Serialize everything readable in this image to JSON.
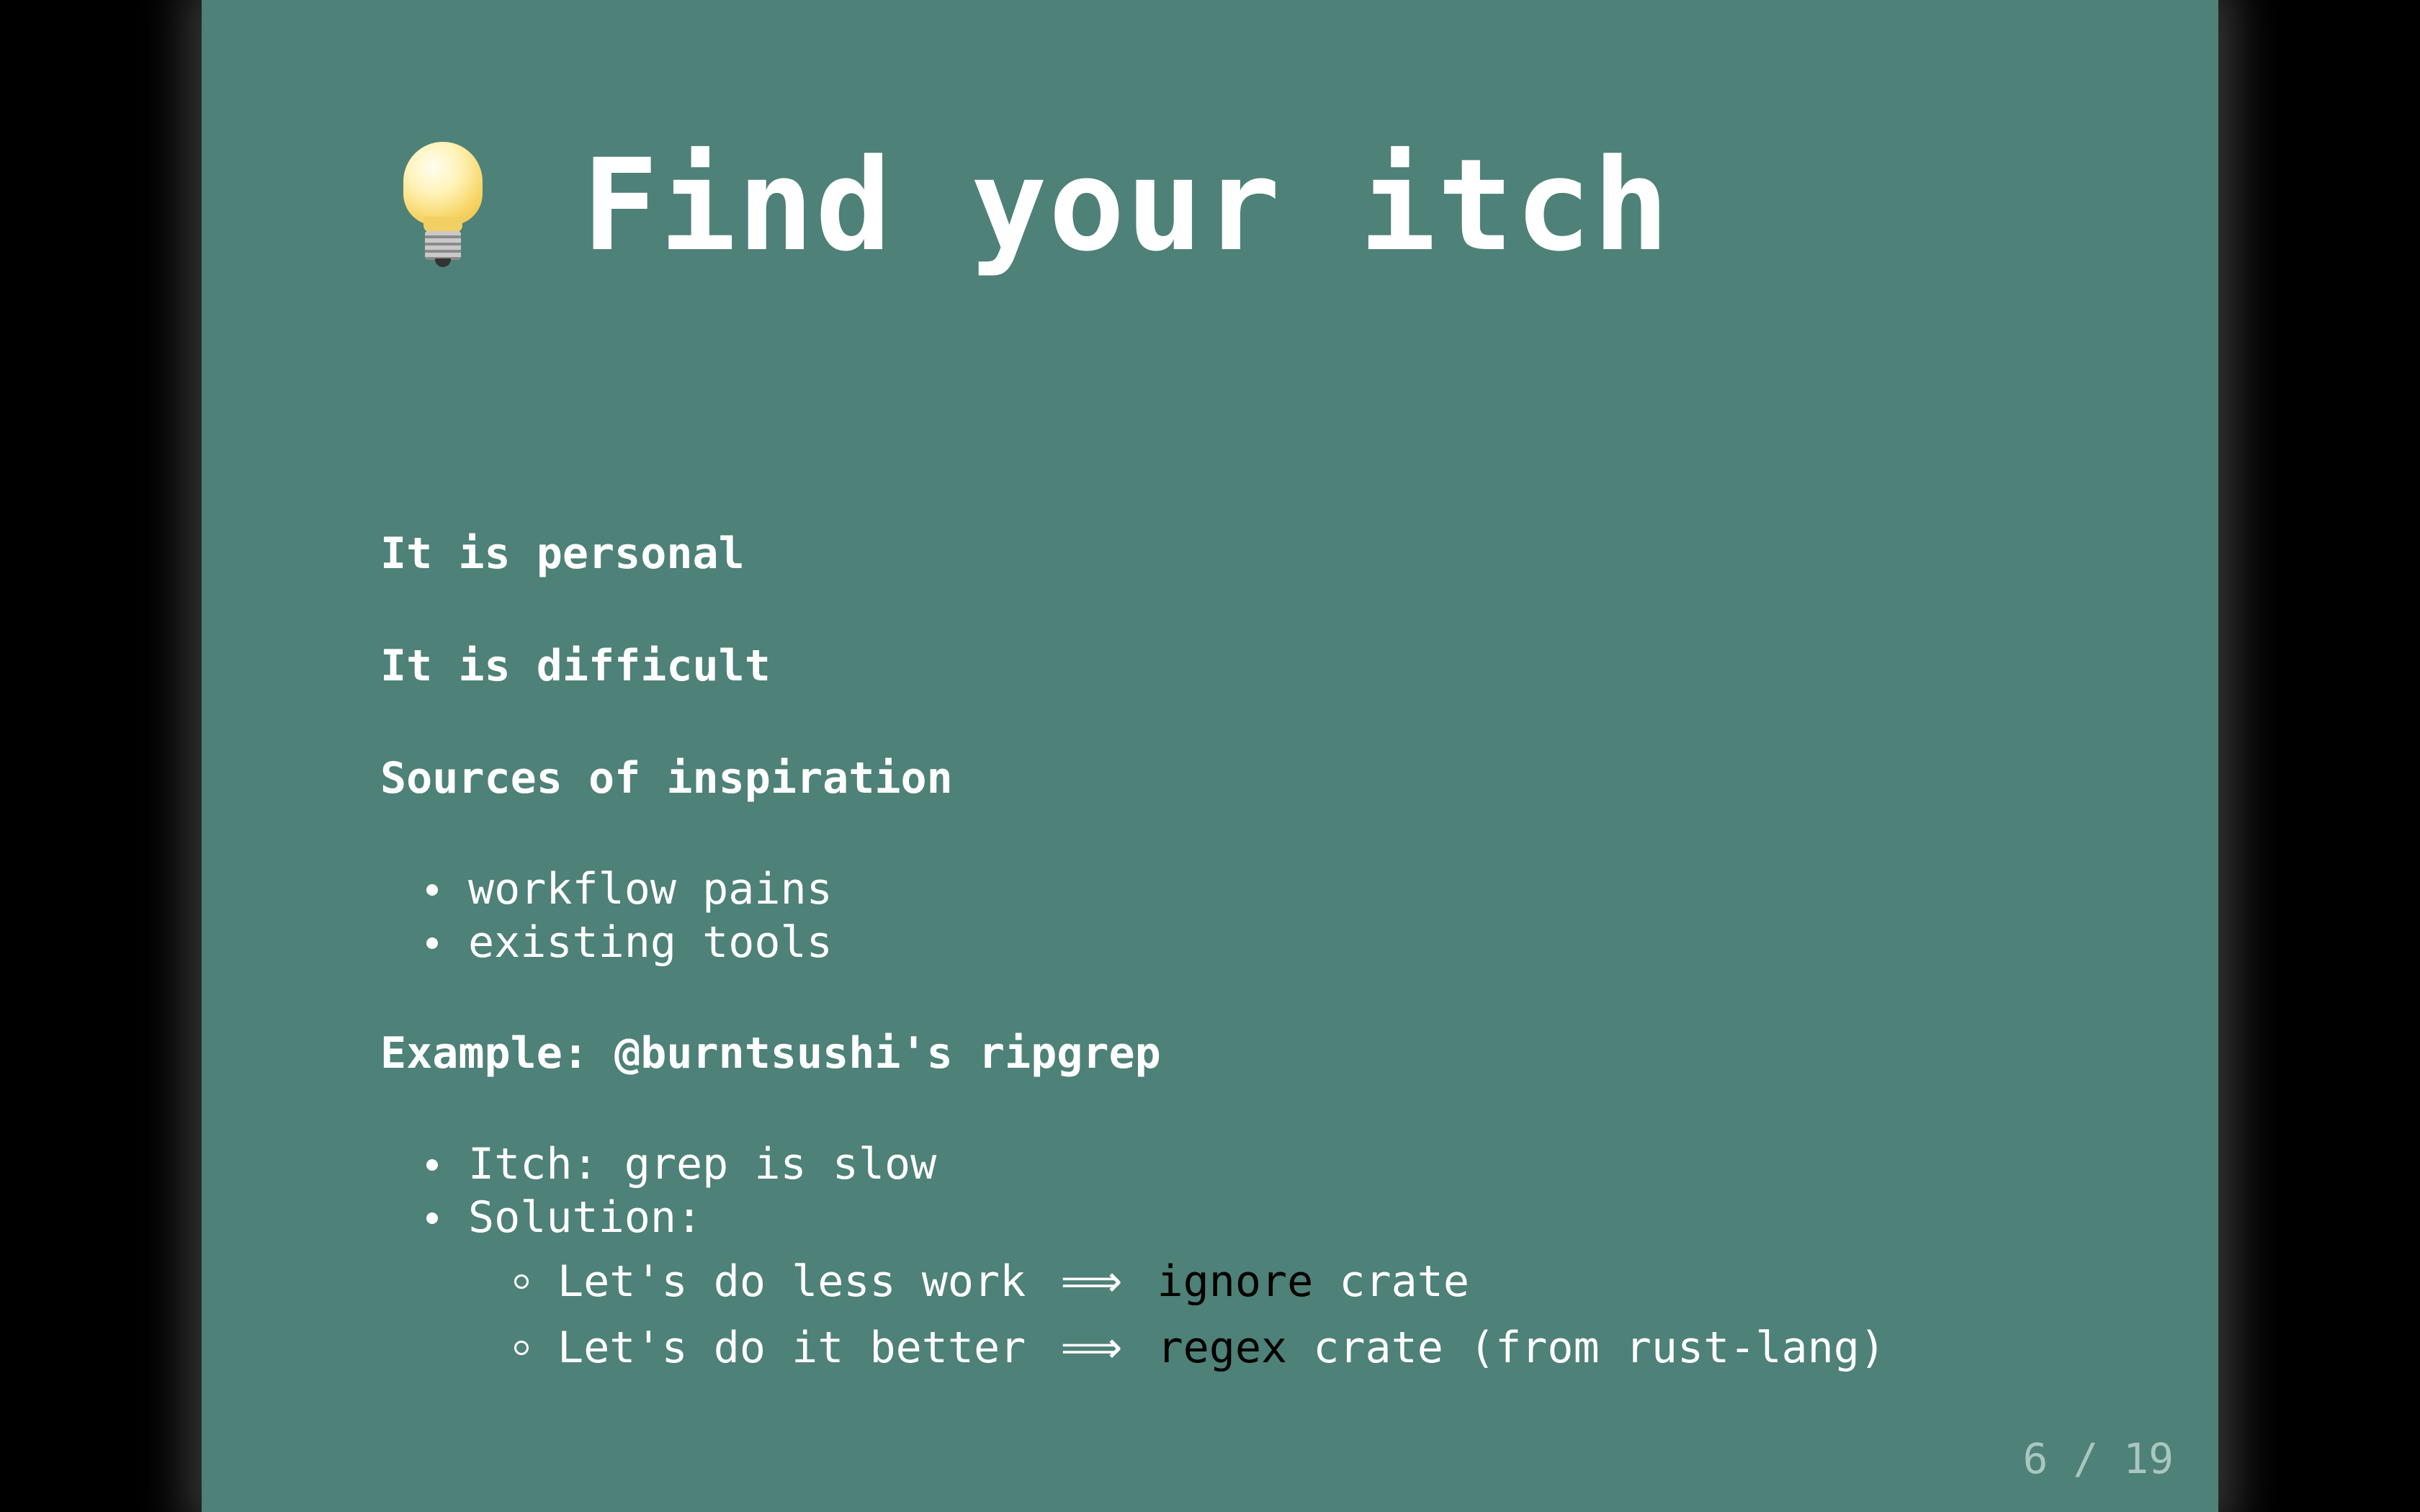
{
  "slide": {
    "title": "Find your itch",
    "title_icon": "lightbulb-icon",
    "background": "#4e8178",
    "headings": {
      "personal": "It is personal",
      "difficult": "It is difficult",
      "inspiration": "Sources of inspiration",
      "example": "Example: @burntsushi's ripgrep"
    },
    "inspiration_items": [
      "workflow pains",
      "existing tools"
    ],
    "example_items": {
      "itch": "Itch: grep is slow",
      "solution": "Solution:",
      "sub": [
        {
          "text": "Let's do less work",
          "arrow": "⟹",
          "code": "ignore",
          "rest": "crate"
        },
        {
          "text": "Let's do it better",
          "arrow": "⟹",
          "code": "regex",
          "rest": "crate (from rust-lang)"
        }
      ]
    },
    "counter": "6 / 19"
  }
}
